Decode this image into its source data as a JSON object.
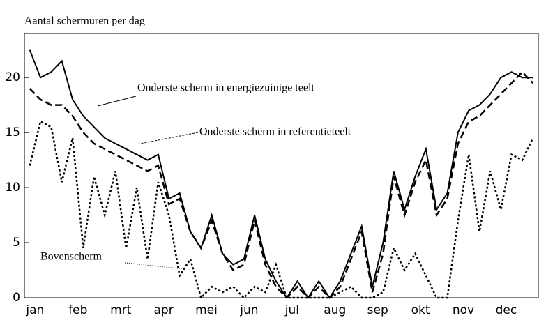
{
  "chart_data": {
    "type": "line",
    "y_label": "Aantal schermuren per dag",
    "categories": [
      null,
      "jan",
      null,
      null,
      null,
      "feb",
      null,
      null,
      null,
      "mrt",
      null,
      null,
      null,
      "apr",
      null,
      null,
      null,
      "mei",
      null,
      null,
      null,
      "jun",
      null,
      null,
      null,
      "jul",
      null,
      null,
      null,
      "aug",
      null,
      null,
      null,
      "sep",
      null,
      null,
      null,
      "okt",
      null,
      null,
      null,
      "nov",
      null,
      null,
      null,
      "dec",
      null,
      null
    ],
    "ylim": [
      0,
      24
    ],
    "yticks": [
      0,
      5,
      10,
      15,
      20
    ],
    "series": [
      {
        "name": "Onderste scherm in energiezuinige teelt",
        "color": "#000000",
        "style": "solid",
        "values": [
          22.5,
          20,
          20.5,
          21.5,
          18,
          16.5,
          15.5,
          14.5,
          14,
          13.5,
          13,
          12.5,
          13,
          9,
          9.5,
          6,
          4.5,
          7.5,
          4,
          3,
          3.5,
          7.5,
          3.5,
          1.5,
          0,
          1.5,
          0,
          1.5,
          0,
          1.5,
          4,
          6.5,
          1,
          5,
          11.5,
          8,
          11,
          13.5,
          8,
          9.5,
          15,
          17,
          17.5,
          18.5,
          20,
          20.5,
          20,
          20
        ]
      },
      {
        "name": "Onderste scherm in referentieteelt",
        "color": "#000000",
        "style": "dashed",
        "values": [
          19,
          18,
          17.5,
          17.5,
          16.5,
          15,
          14,
          13.5,
          13,
          12.5,
          12,
          11.5,
          12,
          8.5,
          9,
          6,
          4.5,
          7,
          4,
          2.5,
          3,
          7,
          3,
          1,
          0,
          1,
          0,
          1,
          0,
          1,
          3.5,
          6,
          0.5,
          4,
          11,
          7.5,
          10.5,
          12.5,
          7.5,
          9,
          14,
          16,
          16.5,
          17.5,
          18.5,
          19.5,
          20.5,
          19.5
        ]
      },
      {
        "name": "Bovenscherm",
        "color": "#000000",
        "style": "dotted",
        "values": [
          12,
          16,
          15.5,
          10.5,
          14.5,
          4.5,
          11,
          7.5,
          11.5,
          4.5,
          10,
          3.5,
          10.5,
          7.5,
          2,
          3.5,
          0,
          1,
          0.5,
          1,
          0,
          1,
          0.5,
          3,
          0,
          0,
          0,
          0,
          0,
          0.5,
          1,
          0,
          0,
          0.5,
          4.5,
          2.5,
          4,
          2,
          0,
          0,
          7,
          13,
          6,
          11.5,
          8,
          13,
          12.5,
          14.5
        ]
      }
    ]
  }
}
